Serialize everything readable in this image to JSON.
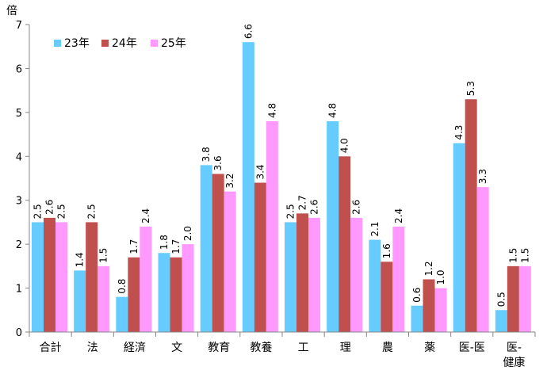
{
  "chart_data": {
    "type": "bar",
    "unit": "倍",
    "ylim": [
      0,
      7
    ],
    "yticks": [
      "0",
      "1",
      "2",
      "3",
      "4",
      "5",
      "6",
      "7"
    ],
    "grid": false,
    "legend_position": "top-left",
    "categories": [
      [
        "合計"
      ],
      [
        "法"
      ],
      [
        "経済"
      ],
      [
        "文"
      ],
      [
        "教育"
      ],
      [
        "教養"
      ],
      [
        "工"
      ],
      [
        "理"
      ],
      [
        "農"
      ],
      [
        "薬"
      ],
      [
        "医-医"
      ],
      [
        "医-",
        "健康"
      ]
    ],
    "series": [
      {
        "name": "23年",
        "color": "#66ccff",
        "values": [
          2.5,
          1.4,
          0.8,
          1.8,
          3.8,
          6.6,
          2.5,
          4.8,
          2.1,
          0.6,
          4.3,
          0.5
        ],
        "labels": [
          "2.5",
          "1.4",
          "0.8",
          "1.8",
          "3.8",
          "6.6",
          "2.5",
          "4.8",
          "2.1",
          "0.6",
          "4.3",
          "0.5"
        ]
      },
      {
        "name": "24年",
        "color": "#c0504d",
        "values": [
          2.6,
          2.5,
          1.7,
          1.7,
          3.6,
          3.4,
          2.7,
          4.0,
          1.6,
          1.2,
          5.3,
          1.5
        ],
        "labels": [
          "2.6",
          "2.5",
          "1.7",
          "1.7",
          "3.6",
          "3.4",
          "2.7",
          "4.0",
          "1.6",
          "1.2",
          "5.3",
          "1.5"
        ]
      },
      {
        "name": "25年",
        "color": "#ff99ff",
        "values": [
          2.5,
          1.5,
          2.4,
          2.0,
          3.2,
          4.8,
          2.6,
          2.6,
          2.4,
          1.0,
          3.3,
          1.5
        ],
        "labels": [
          "2.5",
          "1.5",
          "2.4",
          "2.0",
          "3.2",
          "4.8",
          "2.6",
          "2.6",
          "2.4",
          "1.0",
          "3.3",
          "1.5"
        ]
      }
    ]
  }
}
